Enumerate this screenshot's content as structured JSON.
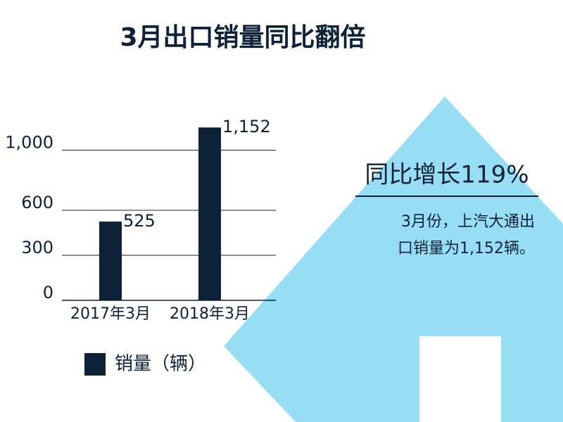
{
  "chart_data": {
    "type": "bar",
    "title": "3月出口销量同比翻倍",
    "categories": [
      "2017年3月",
      "2018年3月"
    ],
    "series": [
      {
        "name": "销量（辆）",
        "color": "#0d2138",
        "values": [
          525,
          1152
        ],
        "value_labels": [
          "525",
          "1,152"
        ]
      }
    ],
    "ylim": [
      0,
      1200
    ],
    "yticks": [
      0,
      300,
      600,
      {
        "value": 1000,
        "label": "1,000"
      }
    ],
    "grid": true,
    "legend": "bottom",
    "annotation_title": "同比增长119%",
    "annotation_lines": [
      "3月份，上汽大通出",
      "口销量为1,152辆。"
    ]
  }
}
